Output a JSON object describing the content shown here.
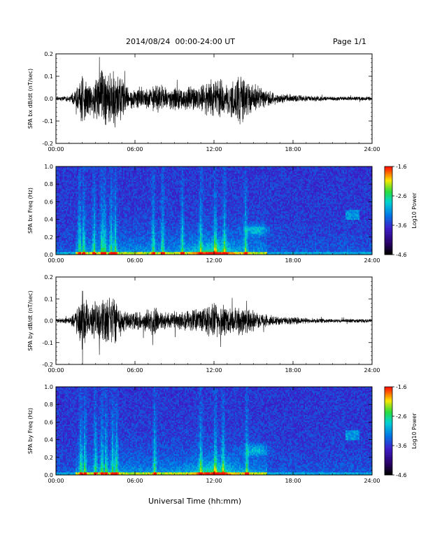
{
  "header": {
    "title": "2014/08/24  00:00-24:00 UT",
    "page": "Page 1/1"
  },
  "footer": {
    "xlabel": "Universal Time (hh:mm)"
  },
  "chart_data": [
    {
      "type": "line",
      "ylabel": "SPA bx dB/dt (nT/sec)",
      "x_ticks": [
        "00:00",
        "06:00",
        "12:00",
        "18:00",
        "24:00"
      ],
      "y_ticks": [
        "-0.2",
        "-0.1",
        "0.0",
        "0.1",
        "0.2"
      ],
      "xlim": [
        0,
        24
      ],
      "ylim": [
        -0.2,
        0.2
      ],
      "envelope": {
        "x_hours": [
          0,
          1,
          1.5,
          2,
          2.5,
          3,
          3.5,
          4,
          4.5,
          5,
          5.5,
          6,
          6.5,
          7,
          7.5,
          8,
          8.5,
          9,
          9.5,
          10,
          10.5,
          11,
          11.5,
          12,
          12.5,
          13,
          13.5,
          14,
          14.5,
          15,
          15.5,
          16,
          16.5,
          17,
          18,
          19,
          20,
          21,
          22,
          23,
          24
        ],
        "amplitude": [
          0.01,
          0.015,
          0.04,
          0.13,
          0.09,
          0.1,
          0.14,
          0.12,
          0.14,
          0.1,
          0.06,
          0.05,
          0.06,
          0.05,
          0.07,
          0.07,
          0.05,
          0.06,
          0.05,
          0.06,
          0.06,
          0.07,
          0.08,
          0.1,
          0.09,
          0.08,
          0.09,
          0.12,
          0.09,
          0.07,
          0.06,
          0.04,
          0.03,
          0.025,
          0.02,
          0.015,
          0.012,
          0.01,
          0.01,
          0.01,
          0.01
        ]
      }
    },
    {
      "type": "heatmap",
      "ylabel": "SPA bx Freq (Hz)",
      "x_ticks": [
        "00:00",
        "06:00",
        "12:00",
        "18:00",
        "24:00"
      ],
      "y_ticks": [
        "0.0",
        "0.2",
        "0.4",
        "0.6",
        "0.8",
        "1.0"
      ],
      "xlim": [
        0,
        24
      ],
      "ylim": [
        0,
        1.0
      ],
      "colorbar": {
        "label": "Log10 Power",
        "ticks": [
          "-1.6",
          "-2.6",
          "-3.6",
          "-4.6"
        ],
        "range": [
          -4.6,
          -1.6
        ]
      },
      "bursts_hours": [
        1.8,
        2.1,
        2.9,
        3.5,
        3.7,
        4.2,
        4.5,
        7.4,
        8.1,
        9.6,
        11.0,
        12.1,
        12.8,
        14.4
      ]
    },
    {
      "type": "line",
      "ylabel": "SPA by dB/dt (nT/sec)",
      "x_ticks": [
        "00:00",
        "06:00",
        "12:00",
        "18:00",
        "24:00"
      ],
      "y_ticks": [
        "-0.2",
        "-0.1",
        "0.0",
        "0.1",
        "0.2"
      ],
      "xlim": [
        0,
        24
      ],
      "ylim": [
        -0.2,
        0.2
      ],
      "envelope": {
        "x_hours": [
          0,
          1,
          1.5,
          2,
          2.5,
          3,
          3.5,
          4,
          4.5,
          5,
          5.5,
          6,
          6.5,
          7,
          7.5,
          8,
          8.5,
          9,
          9.5,
          10,
          10.5,
          11,
          11.5,
          12,
          12.5,
          13,
          13.5,
          14,
          14.5,
          15,
          15.5,
          16,
          16.5,
          17,
          18,
          19,
          20,
          21,
          22,
          23,
          24
        ],
        "amplitude": [
          0.012,
          0.015,
          0.05,
          0.15,
          0.08,
          0.11,
          0.1,
          0.13,
          0.12,
          0.07,
          0.05,
          0.045,
          0.05,
          0.06,
          0.08,
          0.05,
          0.04,
          0.05,
          0.05,
          0.05,
          0.06,
          0.06,
          0.07,
          0.09,
          0.08,
          0.07,
          0.07,
          0.08,
          0.06,
          0.05,
          0.04,
          0.03,
          0.025,
          0.02,
          0.02,
          0.015,
          0.012,
          0.01,
          0.01,
          0.01,
          0.01
        ]
      }
    },
    {
      "type": "heatmap",
      "ylabel": "SPA by Freq (Hz)",
      "x_ticks": [
        "00:00",
        "06:00",
        "12:00",
        "18:00",
        "24:00"
      ],
      "y_ticks": [
        "0.0",
        "0.2",
        "0.4",
        "0.6",
        "0.8",
        "1.0"
      ],
      "xlim": [
        0,
        24
      ],
      "ylim": [
        0,
        1.0
      ],
      "colorbar": {
        "label": "Log10 Power",
        "ticks": [
          "-1.6",
          "-2.6",
          "-3.6",
          "-4.6"
        ],
        "range": [
          -4.6,
          -1.6
        ]
      },
      "bursts_hours": [
        1.9,
        2.2,
        3.0,
        3.5,
        3.8,
        4.3,
        4.6,
        7.5,
        11.0,
        12.1,
        12.7,
        14.5
      ]
    }
  ]
}
